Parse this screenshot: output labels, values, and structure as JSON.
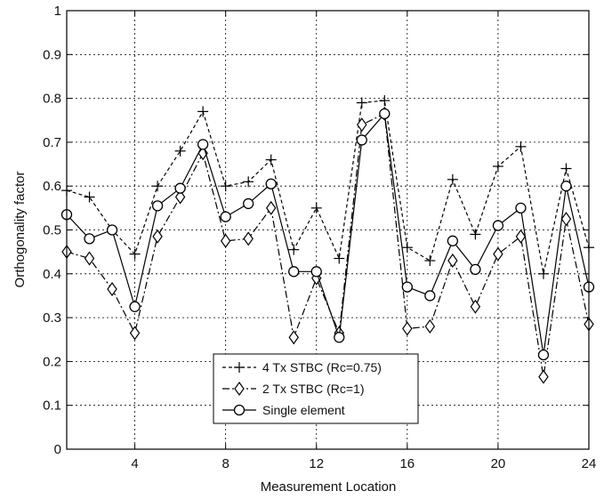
{
  "chart_data": {
    "type": "line",
    "title": "",
    "xlabel": "Measurement Location",
    "ylabel": "Orthogonality factor",
    "xlim": [
      1,
      24
    ],
    "ylim": [
      0,
      1
    ],
    "xticks": [
      4,
      8,
      12,
      16,
      20,
      24
    ],
    "yticks": [
      0,
      0.1,
      0.2,
      0.3,
      0.4,
      0.5,
      0.6,
      0.7,
      0.8,
      0.9,
      1
    ],
    "grid": true,
    "legend_position": "bottom-center",
    "x": [
      1,
      2,
      3,
      4,
      5,
      6,
      7,
      8,
      9,
      10,
      11,
      12,
      13,
      14,
      15,
      16,
      17,
      18,
      19,
      20,
      21,
      22,
      23,
      24
    ],
    "series": [
      {
        "name": "4 Tx STBC (Rc=0.75)",
        "marker": "plus",
        "line_style": "dashed",
        "color": "#000000",
        "values": [
          0.59,
          0.575,
          0.5,
          0.445,
          0.6,
          0.68,
          0.77,
          0.6,
          0.61,
          0.66,
          0.455,
          0.55,
          0.435,
          0.79,
          0.795,
          0.46,
          0.43,
          0.615,
          0.49,
          0.645,
          0.69,
          0.4,
          0.64,
          0.46
        ]
      },
      {
        "name": "2 Tx STBC (Rc=1)",
        "marker": "diamond",
        "line_style": "dash-dot",
        "color": "#000000",
        "values": [
          0.45,
          0.435,
          0.365,
          0.265,
          0.485,
          0.575,
          0.675,
          0.475,
          0.48,
          0.55,
          0.255,
          0.39,
          0.265,
          0.74,
          0.765,
          0.275,
          0.28,
          0.43,
          0.325,
          0.445,
          0.485,
          0.165,
          0.525,
          0.285
        ]
      },
      {
        "name": "Single element",
        "marker": "circle",
        "line_style": "solid",
        "color": "#000000",
        "values": [
          0.535,
          0.48,
          0.5,
          0.325,
          0.555,
          0.595,
          0.695,
          0.53,
          0.56,
          0.605,
          0.405,
          0.405,
          0.255,
          0.705,
          0.765,
          0.37,
          0.35,
          0.475,
          0.41,
          0.51,
          0.55,
          0.215,
          0.6,
          0.37
        ]
      }
    ]
  }
}
